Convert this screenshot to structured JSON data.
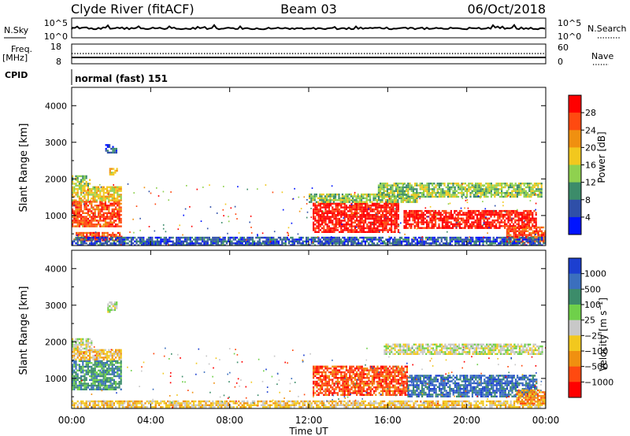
{
  "header": {
    "station": "Clyde River (fitACF)",
    "beam": "Beam 03",
    "date": "06/Oct/2018"
  },
  "status_panels": {
    "nsky_label": "N.Sky",
    "nsky_ticks": [
      "10^5",
      "10^0"
    ],
    "nsearch_label": "N.Search",
    "nsearch_ticks": [
      "10^5",
      "10^0"
    ],
    "freq_label_line1": "Freq.",
    "freq_label_line2": "[MHz]",
    "freq_ticks": [
      "18",
      "8"
    ],
    "nave_label": "Nave",
    "nave_ticks": [
      "60",
      "0"
    ],
    "cpid_label": "CPID",
    "cpid_value": "normal (fast) 151"
  },
  "chart_data": [
    {
      "type": "heatmap",
      "name": "power",
      "ylabel": "Slant Range [km]",
      "xlabel": "Time UT",
      "x_ticks": [
        "00:00",
        "04:00",
        "08:00",
        "12:00",
        "16:00",
        "20:00",
        "00:00"
      ],
      "xlim_hours": [
        0,
        24
      ],
      "ylim": [
        180,
        4500
      ],
      "y_ticks": [
        "1000",
        "2000",
        "3000",
        "4000"
      ],
      "y_tick_values": [
        1000,
        2000,
        3000,
        4000
      ],
      "colorbar_label": "Power [dB]",
      "colorbar_ticks": [
        "4",
        "8",
        "12",
        "16",
        "20",
        "24",
        "28"
      ],
      "colorbar_colors": [
        "#0014ff",
        "#2f4fa8",
        "#3c8c6a",
        "#8fd14f",
        "#f2c81e",
        "#f09010",
        "#ff4a10",
        "#ff0000"
      ],
      "regions": [
        {
          "t0": 0.0,
          "t1": 2.5,
          "r0": 700,
          "r1": 1400,
          "level": 6
        },
        {
          "t0": 0.0,
          "t1": 2.5,
          "r0": 1400,
          "r1": 1800,
          "level": 4
        },
        {
          "t0": 0.0,
          "t1": 0.9,
          "r0": 1800,
          "r1": 2100,
          "level": 3
        },
        {
          "t0": 1.7,
          "t1": 2.3,
          "r0": 2700,
          "r1": 2950,
          "level": 1
        },
        {
          "t0": 1.9,
          "t1": 2.3,
          "r0": 2100,
          "r1": 2300,
          "level": 4
        },
        {
          "t0": 0.2,
          "t1": 2.5,
          "r0": 300,
          "r1": 550,
          "level": 6
        },
        {
          "t0": 12.2,
          "t1": 16.5,
          "r0": 550,
          "r1": 1350,
          "level": 7
        },
        {
          "t0": 12.0,
          "t1": 17.5,
          "r0": 1350,
          "r1": 1600,
          "level": 3
        },
        {
          "t0": 15.5,
          "t1": 23.8,
          "r0": 1500,
          "r1": 1900,
          "level": 3
        },
        {
          "t0": 16.8,
          "t1": 23.5,
          "r0": 650,
          "r1": 1150,
          "level": 7
        },
        {
          "t0": 22.0,
          "t1": 24.0,
          "r0": 280,
          "r1": 700,
          "level": 6
        },
        {
          "t0": 0.0,
          "t1": 24.0,
          "r0": 200,
          "r1": 420,
          "level": 1
        }
      ]
    },
    {
      "type": "heatmap",
      "name": "velocity",
      "ylabel": "Slant Range [km]",
      "xlabel": "Time UT",
      "x_ticks": [
        "00:00",
        "04:00",
        "08:00",
        "12:00",
        "16:00",
        "20:00",
        "00:00"
      ],
      "xlim_hours": [
        0,
        24
      ],
      "ylim": [
        180,
        4500
      ],
      "y_ticks": [
        "1000",
        "2000",
        "3000",
        "4000"
      ],
      "y_tick_values": [
        1000,
        2000,
        3000,
        4000
      ],
      "colorbar_label": "Velocity [m s^-1]",
      "colorbar_ticks": [
        "1000",
        "500",
        "100",
        "25",
        "-25",
        "-100",
        "-500",
        "-1000"
      ],
      "colorbar_colors": [
        "#1c3fd0",
        "#3b6fbe",
        "#3c8c6a",
        "#6fd04a",
        "#c8c8c8",
        "#f2c81e",
        "#f09010",
        "#ff4a10",
        "#ff0000"
      ],
      "regions": [
        {
          "t0": 0.0,
          "t1": 2.5,
          "r0": 700,
          "r1": 1500,
          "level": 2
        },
        {
          "t0": 0.0,
          "t1": 2.5,
          "r0": 1500,
          "r1": 1800,
          "level": 5
        },
        {
          "t0": 0.0,
          "t1": 1.0,
          "r0": 1800,
          "r1": 2100,
          "level": 4
        },
        {
          "t0": 1.8,
          "t1": 2.3,
          "r0": 2800,
          "r1": 3100,
          "level": 4
        },
        {
          "t0": 12.2,
          "t1": 17.0,
          "r0": 550,
          "r1": 1350,
          "level": 7
        },
        {
          "t0": 15.8,
          "t1": 23.8,
          "r0": 1650,
          "r1": 1950,
          "level": 4
        },
        {
          "t0": 17.0,
          "t1": 23.5,
          "r0": 500,
          "r1": 1100,
          "level": 1
        },
        {
          "t0": 0.0,
          "t1": 24.0,
          "r0": 200,
          "r1": 400,
          "level": 5
        },
        {
          "t0": 22.5,
          "t1": 24.0,
          "r0": 300,
          "r1": 700,
          "level": 6
        }
      ]
    }
  ]
}
